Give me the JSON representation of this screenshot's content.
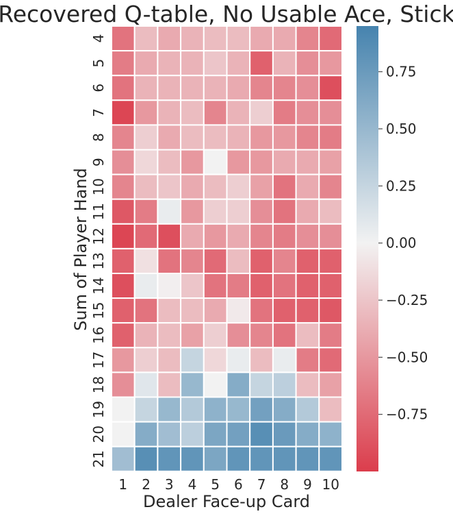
{
  "chart_data": {
    "type": "heatmap",
    "title": "Recovered Q-table, No Usable Ace, Stick",
    "xlabel": "Dealer Face-up Card",
    "ylabel": "Sum of Player Hand",
    "x_categories": [
      "1",
      "2",
      "3",
      "4",
      "5",
      "6",
      "7",
      "8",
      "9",
      "10"
    ],
    "y_categories": [
      "4",
      "5",
      "6",
      "7",
      "8",
      "9",
      "10",
      "11",
      "12",
      "13",
      "14",
      "15",
      "16",
      "17",
      "18",
      "19",
      "20",
      "21"
    ],
    "values": [
      [
        -0.7,
        -0.3,
        -0.4,
        -0.35,
        -0.3,
        -0.3,
        -0.4,
        -0.4,
        -0.6,
        -0.75
      ],
      [
        -0.65,
        -0.4,
        -0.35,
        -0.35,
        -0.25,
        -0.35,
        -0.8,
        -0.35,
        -0.55,
        -0.5
      ],
      [
        -0.7,
        -0.35,
        -0.35,
        -0.35,
        -0.35,
        -0.4,
        -0.6,
        -0.6,
        -0.55,
        -0.9
      ],
      [
        -0.95,
        -0.5,
        -0.35,
        -0.3,
        -0.6,
        -0.35,
        -0.2,
        -0.65,
        -0.55,
        -0.55
      ],
      [
        -0.6,
        -0.2,
        -0.4,
        -0.3,
        -0.3,
        -0.35,
        -0.5,
        -0.5,
        -0.6,
        -0.65
      ],
      [
        -0.55,
        -0.15,
        -0.3,
        -0.5,
        0.0,
        -0.5,
        -0.5,
        -0.4,
        -0.4,
        -0.45
      ],
      [
        -0.6,
        -0.3,
        -0.25,
        -0.4,
        -0.3,
        -0.2,
        -0.45,
        -0.7,
        -0.4,
        -0.6
      ],
      [
        -0.85,
        -0.65,
        0.05,
        -0.5,
        -0.2,
        -0.2,
        -0.55,
        -0.7,
        -0.4,
        -0.3
      ],
      [
        -0.95,
        -0.75,
        -0.9,
        -0.4,
        -0.5,
        -0.4,
        -0.6,
        -0.65,
        -0.55,
        -0.55
      ],
      [
        -0.8,
        -0.1,
        -0.7,
        -0.6,
        -0.75,
        -0.3,
        -0.8,
        -0.6,
        -0.8,
        -0.8
      ],
      [
        -0.9,
        0.05,
        -0.02,
        -0.25,
        -0.7,
        -0.65,
        -0.8,
        -0.7,
        -0.8,
        -0.8
      ],
      [
        -0.8,
        -0.7,
        -0.3,
        -0.3,
        -0.4,
        -0.05,
        -0.7,
        -0.8,
        -0.8,
        -0.85
      ],
      [
        -0.8,
        -0.35,
        -0.3,
        -0.45,
        -0.2,
        -0.55,
        -0.6,
        -0.7,
        -0.3,
        -0.65
      ],
      [
        -0.5,
        -0.2,
        -0.3,
        0.25,
        -0.15,
        0.05,
        -0.3,
        0.05,
        -0.65,
        -0.75
      ],
      [
        -0.55,
        0.1,
        -0.3,
        0.5,
        0.0,
        0.6,
        0.25,
        0.3,
        -0.3,
        -0.45
      ],
      [
        0.0,
        0.25,
        0.5,
        0.35,
        0.55,
        0.5,
        0.7,
        0.6,
        0.35,
        -0.3
      ],
      [
        0.0,
        0.6,
        0.45,
        0.3,
        0.65,
        0.7,
        0.85,
        0.75,
        0.6,
        0.55
      ],
      [
        0.45,
        0.85,
        0.8,
        0.8,
        0.65,
        0.8,
        0.8,
        0.8,
        0.8,
        0.8
      ]
    ],
    "vmin": -1.0,
    "vmax": 0.95,
    "colorbar": {
      "ticks": [
        -0.75,
        -0.5,
        -0.25,
        0.0,
        0.25,
        0.5,
        0.75
      ],
      "tick_labels": [
        "−0.75",
        "−0.50",
        "−0.25",
        "0.00",
        "0.25",
        "0.50",
        "0.75"
      ]
    },
    "colors": {
      "low": "#db3d4c",
      "mid": "#f2f2f2",
      "high": "#4683ae"
    },
    "grid": true
  }
}
